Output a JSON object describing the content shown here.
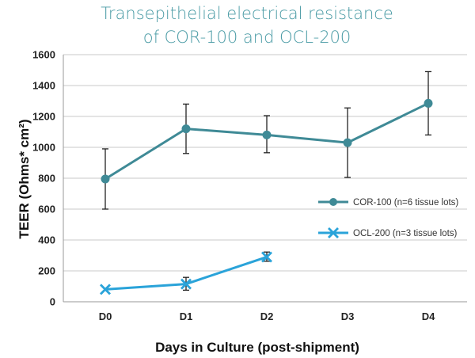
{
  "chart_data": {
    "type": "line",
    "title_lines": [
      "Transepithelial electrical resistance",
      "of COR-100 and OCL-200"
    ],
    "xlabel": "Days in Culture (post-shipment)",
    "ylabel": "TEER (Ohms* cm²)",
    "categories": [
      "D0",
      "D1",
      "D2",
      "D3",
      "D4"
    ],
    "ylim": [
      0,
      1600
    ],
    "yticks": [
      "0",
      "200",
      "400",
      "600",
      "800",
      "1000",
      "1200",
      "1400",
      "1600"
    ],
    "grid": true,
    "series": [
      {
        "name": "COR-100 (n=6 tissue lots)",
        "color": "#3f8a96",
        "marker": "circle",
        "values": [
          795,
          1120,
          1080,
          1030,
          1285
        ],
        "err_low": [
          600,
          960,
          965,
          805,
          1080
        ],
        "err_high": [
          990,
          1280,
          1205,
          1255,
          1490
        ]
      },
      {
        "name": "OCL-200 (n=3 tissue lots)",
        "color": "#2aa3d9",
        "marker": "x",
        "values": [
          80,
          115,
          290,
          null,
          null
        ],
        "err_low": [
          80,
          75,
          262,
          null,
          null
        ],
        "err_high": [
          80,
          158,
          322,
          null,
          null
        ]
      }
    ]
  }
}
